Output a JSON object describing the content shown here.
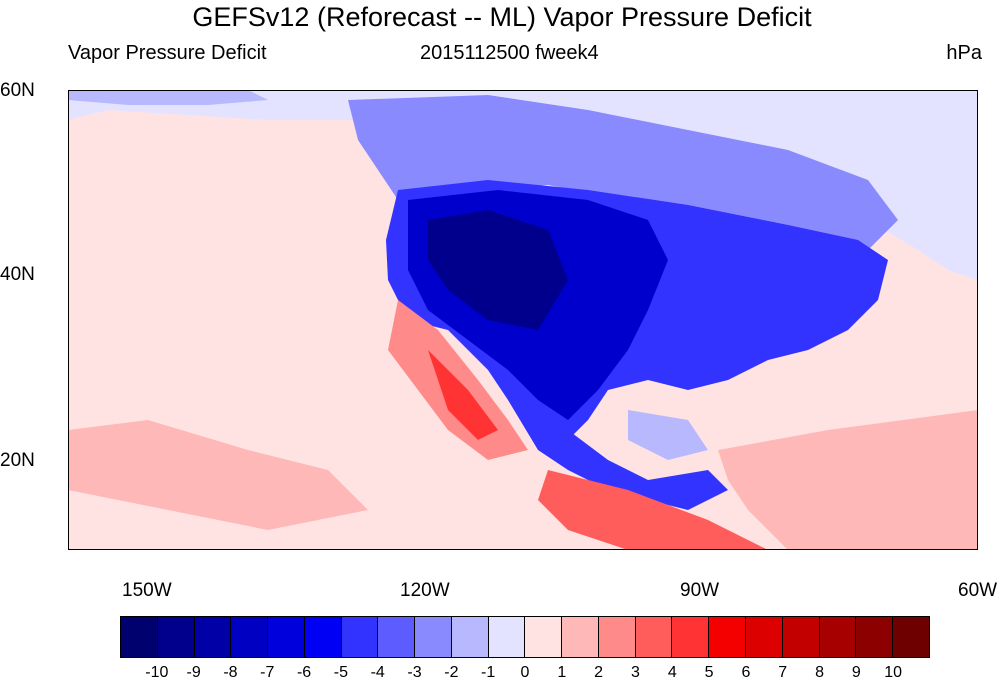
{
  "title": "GEFSv12 (Reforecast -- ML) Vapor Pressure Deficit",
  "subtitle_left": "Vapor Pressure Deficit",
  "subtitle_center": "2015112500 fweek4",
  "subtitle_right": "hPa",
  "map": {
    "region": "North America and surrounding Pacific/Atlantic",
    "lon_range": [
      -160,
      -62
    ],
    "lat_range": [
      10,
      60
    ],
    "lat_labels": [
      "60N",
      "40N",
      "20N"
    ],
    "lon_labels": [
      "150W",
      "120W",
      "90W",
      "60W"
    ],
    "description_colors": {
      "ocean_pos": "#ffe3e3",
      "strong_neg": "#0000cc",
      "moderate_neg": "#4d4dff",
      "weak_neg": "#b3b3ff"
    }
  },
  "legend": {
    "labels": [
      "-10",
      "-9",
      "-8",
      "-7",
      "-6",
      "-5",
      "-4",
      "-3",
      "-2",
      "-1",
      "0",
      "1",
      "2",
      "3",
      "4",
      "5",
      "6",
      "7",
      "8",
      "9",
      "10"
    ],
    "colors": [
      "#00006e",
      "#00008c",
      "#0000a6",
      "#0000c2",
      "#0000dc",
      "#0000f5",
      "#3333ff",
      "#5c5cff",
      "#8a8aff",
      "#b8b8ff",
      "#e3e3ff",
      "#ffe3e3",
      "#ffb8b8",
      "#ff8a8a",
      "#ff5c5c",
      "#ff3333",
      "#f50000",
      "#dc0000",
      "#c20000",
      "#a60000",
      "#8c0000",
      "#6e0000"
    ]
  }
}
